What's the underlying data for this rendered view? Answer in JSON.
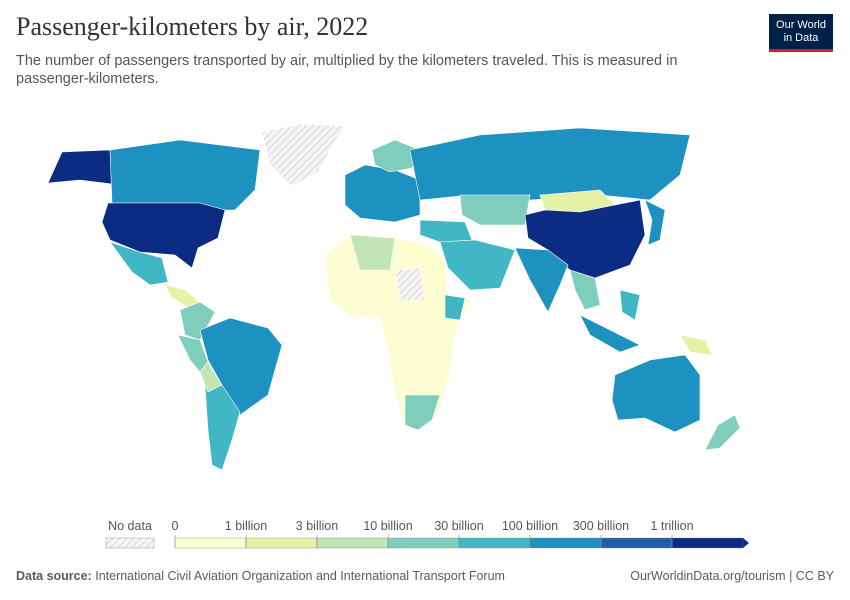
{
  "header": {
    "title": "Passenger-kilometers by air, 2022",
    "subtitle": "The number of passengers transported by air, multiplied by the kilometers traveled. This is measured in passenger-kilometers.",
    "logo": [
      "Our World",
      "in Data"
    ]
  },
  "legend": {
    "no_data": "No data",
    "labels": [
      "0",
      "1 billion",
      "3 billion",
      "10 billion",
      "30 billion",
      "100 billion",
      "300 billion",
      "1 trillion"
    ],
    "colors": [
      "#fdfdd2",
      "#e5f2a6",
      "#c2e5b4",
      "#7fcdbb",
      "#41b6c4",
      "#1d91c0",
      "#225ea8",
      "#0c2c84"
    ]
  },
  "footer": {
    "source_label": "Data source:",
    "source": "International Civil Aviation Organization and International Transport Forum",
    "link": "OurWorldinData.org/tourism | CC BY"
  }
}
